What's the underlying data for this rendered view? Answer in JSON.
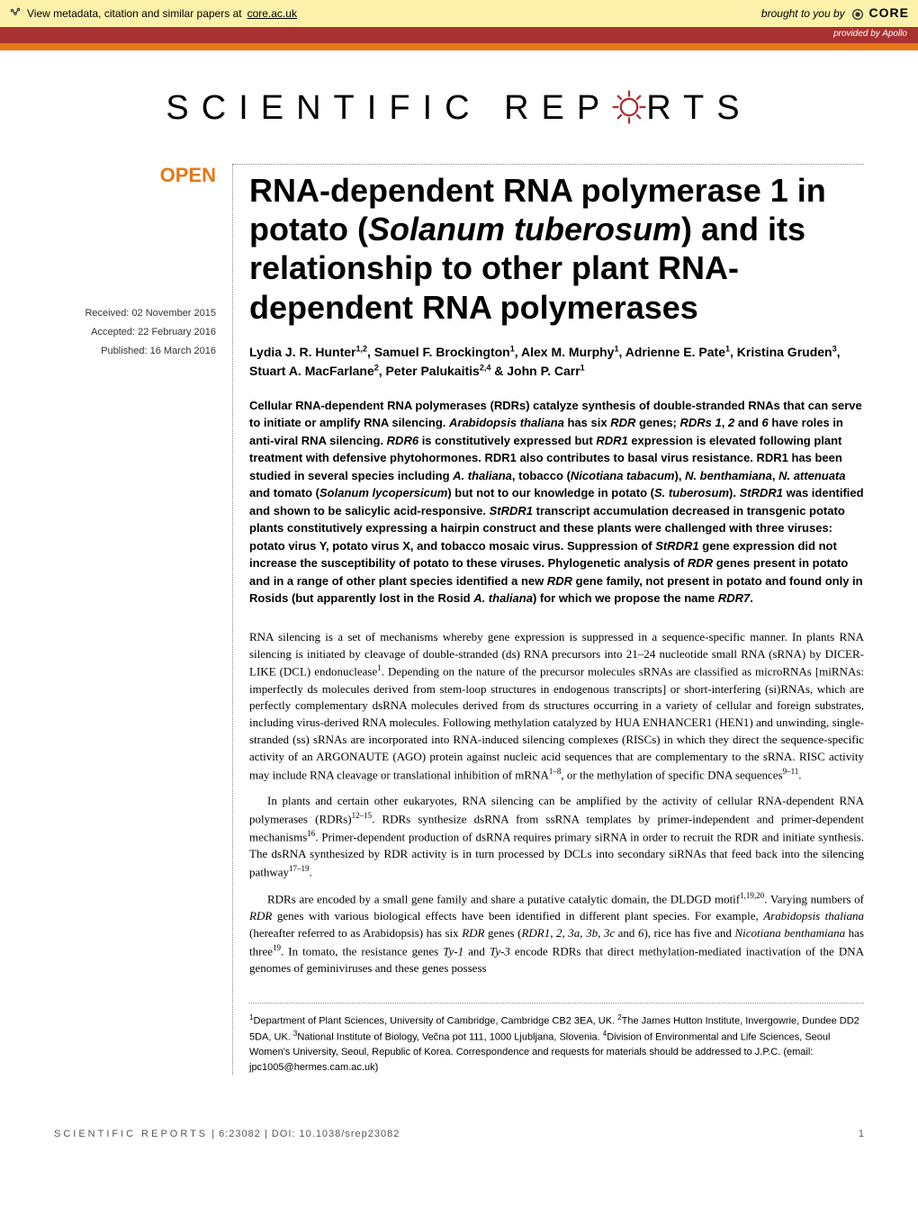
{
  "core_banner": {
    "metadata_text": "View metadata, citation and similar papers at ",
    "core_link": "core.ac.uk",
    "brought_text": "brought to you by ",
    "core_name": "CORE",
    "provided_text": "provided by Apollo"
  },
  "journal": {
    "name_left": "SCIENTIFIC ",
    "name_rep_left": "REP",
    "name_rep_right": "RTS"
  },
  "article": {
    "open_label": "OPEN",
    "dates": {
      "received_label": "Received: ",
      "received": "02 November 2015",
      "accepted_label": "Accepted: ",
      "accepted": "22 February 2016",
      "published_label": "Published: ",
      "published": "16 March 2016"
    },
    "title_parts": {
      "t1": "RNA-dependent RNA polymerase 1 in potato (",
      "t2": "Solanum tuberosum",
      "t3": ") and its relationship to other plant RNA-dependent RNA polymerases"
    },
    "authors_html": "Lydia J. R. Hunter<sup>1,2</sup>, Samuel F. Brockington<sup>1</sup>, Alex M. Murphy<sup>1</sup>, Adrienne E. Pate<sup>1</sup>, Kristina Gruden<sup>3</sup>, Stuart A. MacFarlane<sup>2</sup>, Peter Palukaitis<sup>2,4</sup> & John P. Carr<sup>1</sup>",
    "abstract_html": "Cellular RNA-dependent RNA polymerases (RDRs) catalyze synthesis of double-stranded RNAs that can serve to initiate or amplify RNA silencing. <span class=\"italic\">Arabidopsis thaliana</span> has six <span class=\"italic\">RDR</span> genes; <span class=\"italic\">RDRs 1</span>, <span class=\"italic\">2</span> and <span class=\"italic\">6</span> have roles in anti-viral RNA silencing. <span class=\"italic\">RDR6</span> is constitutively expressed but <span class=\"italic\">RDR1</span> expression is elevated following plant treatment with defensive phytohormones. RDR1 also contributes to basal virus resistance. RDR1 has been studied in several species including <span class=\"italic\">A. thaliana</span>, tobacco (<span class=\"italic\">Nicotiana tabacum</span>), <span class=\"italic\">N. benthamiana</span>, <span class=\"italic\">N. attenuata</span> and tomato (<span class=\"italic\">Solanum lycopersicum</span>) but not to our knowledge in potato (<span class=\"italic\">S. tuberosum</span>). <span class=\"italic\">StRDR1</span> was identified and shown to be salicylic acid-responsive. <span class=\"italic\">StRDR1</span> transcript accumulation decreased in transgenic potato plants constitutively expressing a hairpin construct and these plants were challenged with three viruses: potato virus Y, potato virus X, and tobacco mosaic virus. Suppression of <span class=\"italic\">StRDR1</span> gene expression did not increase the susceptibility of potato to these viruses. Phylogenetic analysis of <span class=\"italic\">RDR</span> genes present in potato and in a range of other plant species identified a new <span class=\"italic\">RDR</span> gene family, not present in potato and found only in Rosids (but apparently lost in the Rosid <span class=\"italic\">A. thaliana</span>) for which we propose the name <span class=\"italic\">RDR7</span>.",
    "body_p1_html": "RNA silencing is a set of mechanisms whereby gene expression is suppressed in a sequence-specific manner. In plants RNA silencing is initiated by cleavage of double-stranded (ds) RNA precursors into 21–24 nucleotide small RNA (sRNA) by DICER-LIKE (DCL) endonuclease<sup>1</sup>. Depending on the nature of the precursor molecules sRNAs are classified as microRNAs [miRNAs: imperfectly ds molecules derived from stem-loop structures in endogenous transcripts] or short-interfering (si)RNAs, which are perfectly complementary dsRNA molecules derived from ds structures occurring in a variety of cellular and foreign substrates, including virus-derived RNA molecules. Following methylation catalyzed by HUA ENHANCER1 (HEN1) and unwinding, single-stranded (ss) sRNAs are incorporated into RNA-induced silencing complexes (RISCs) in which they direct the sequence-specific activity of an ARGONAUTE (AGO) protein against nucleic acid sequences that are complementary to the sRNA. RISC activity may include RNA cleavage or translational inhibition of mRNA<sup>1–8</sup>, or the methylation of specific DNA sequences<sup>9–11</sup>.",
    "body_p2_html": "In plants and certain other eukaryotes, RNA silencing can be amplified by the activity of cellular RNA-dependent RNA polymerases (RDRs)<sup>12–15</sup>. RDRs synthesize dsRNA from ssRNA templates by primer-independent and primer-dependent mechanisms<sup>16</sup>. Primer-dependent production of dsRNA requires primary siRNA in order to recruit the RDR and initiate synthesis. The dsRNA synthesized by RDR activity is in turn processed by DCLs into secondary siRNAs that feed back into the silencing pathway<sup>17–19</sup>.",
    "body_p3_html": "RDRs are encoded by a small gene family and share a putative catalytic domain, the DLDGD motif<sup>1,19,20</sup>. Varying numbers of <span class=\"italic\">RDR</span> genes with various biological effects have been identified in different plant species. For example, <span class=\"italic\">Arabidopsis thaliana</span> (hereafter referred to as Arabidopsis) has six <span class=\"italic\">RDR</span> genes (<span class=\"italic\">RDR1</span>, <span class=\"italic\">2, 3a, 3b, 3c</span> and <span class=\"italic\">6</span>), rice has five and <span class=\"italic\">Nicotiana benthamiana</span> has three<sup>19</sup>. In tomato, the resistance genes <span class=\"italic\">Ty-1</span> and <span class=\"italic\">Ty-3</span> encode RDRs that direct methylation-mediated inactivation of the DNA genomes of geminiviruses and these genes possess",
    "affiliations_html": "<sup>1</sup>Department of Plant Sciences, University of Cambridge, Cambridge CB2 3EA, UK. <sup>2</sup>The James Hutton Institute, Invergowrie, Dundee DD2 5DA, UK. <sup>3</sup>National Institute of Biology, Večna pot 111, 1000 Ljubljana, Slovenia. <sup>4</sup>Division of Environmental and Life Sciences, Seoul Women's University, Seoul, Republic of Korea. Correspondence and requests for materials should be addressed to J.P.C. (email: jpc1005@hermes.cam.ac.uk)"
  },
  "footer": {
    "journal": "SCIENTIFIC REPORTS",
    "citation": " | 6:23082 | DOI: 10.1038/srep23082",
    "page": "1"
  },
  "colors": {
    "core_bg": "#fcf1aa",
    "provided_bg": "#a83232",
    "orange": "#e67817",
    "text": "#000000",
    "footer_text": "#555555",
    "dotted": "#888888"
  }
}
